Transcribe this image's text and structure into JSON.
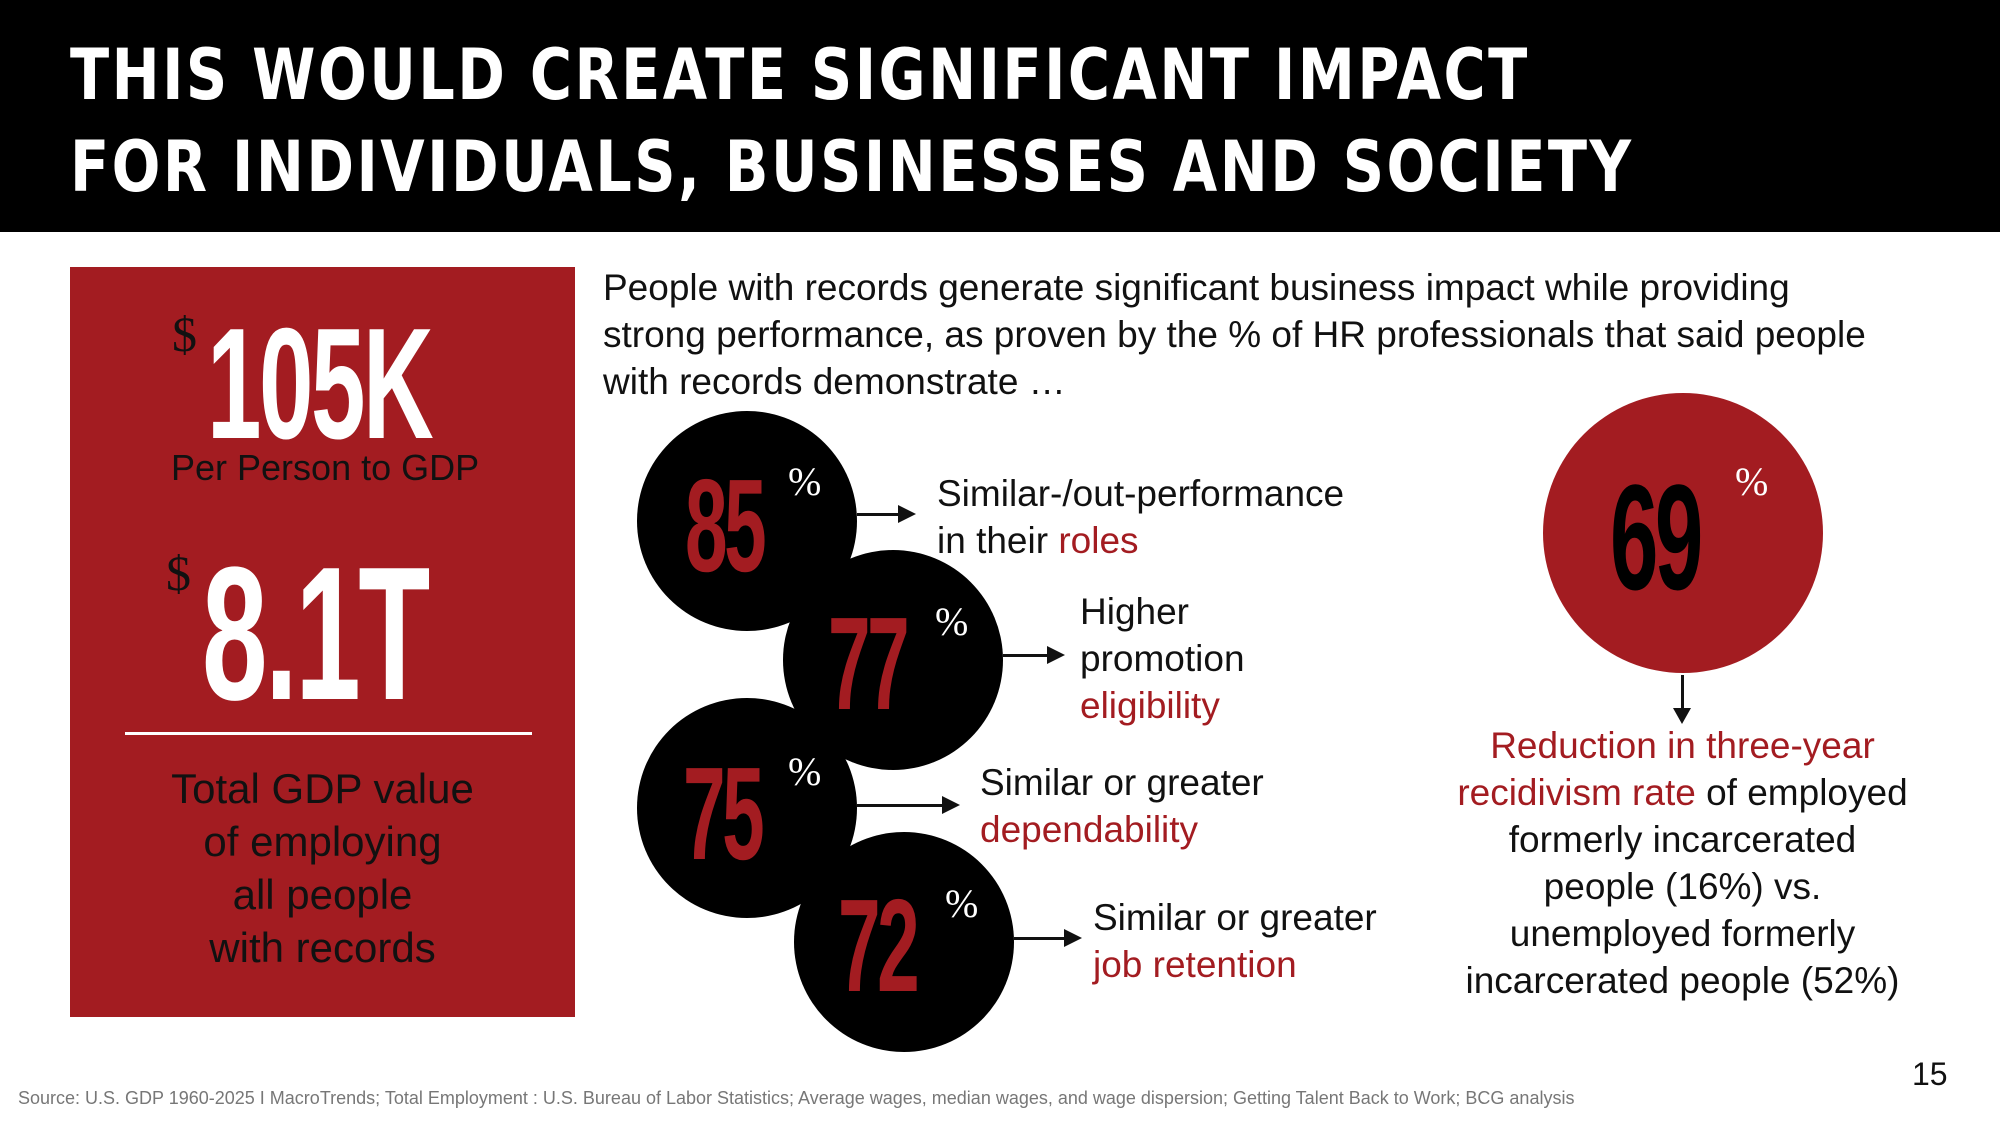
{
  "header": {
    "line1": "THIS WOULD CREATE SIGNIFICANT IMPACT",
    "line2": "FOR INDIVIDUALS, BUSINESSES AND SOCIETY"
  },
  "gdp_box": {
    "stat1_currency": "$",
    "stat1_value": "105K",
    "stat1_label": "Per Person to GDP",
    "stat2_currency": "$",
    "stat2_value": "8.1T",
    "stat2_label_lines": [
      "Total GDP value",
      "of employing",
      "all people",
      "with records"
    ]
  },
  "intro": {
    "lines": [
      "People with records generate significant business impact while providing",
      "strong performance, as proven by the % of HR professionals that said people",
      "with records demonstrate …"
    ]
  },
  "stats": [
    {
      "value": "85",
      "unit": "%",
      "label_lines": [
        "Similar-/out-performance"
      ],
      "label_prefix": "in their ",
      "label_highlight": "roles"
    },
    {
      "value": "77",
      "unit": "%",
      "label_lines": [
        "Higher",
        "promotion"
      ],
      "label_prefix": "",
      "label_highlight": "eligibility"
    },
    {
      "value": "75",
      "unit": "%",
      "label_lines": [
        "Similar or greater"
      ],
      "label_prefix": "",
      "label_highlight": "dependability"
    },
    {
      "value": "72",
      "unit": "%",
      "label_lines": [
        "Similar or greater"
      ],
      "label_prefix": "",
      "label_highlight": "job retention"
    }
  ],
  "recidivism": {
    "value": "69",
    "unit": "%",
    "highlight_line1": "Reduction in three-year",
    "highlight_line2": "recidivism rate",
    "rest_line2": " of employed",
    "lines": [
      "formerly incarcerated",
      "people (16%) vs.",
      "unemployed formerly",
      "incarcerated people (52%)"
    ]
  },
  "footer": {
    "source": "Source: U.S. GDP 1960-2025 I MacroTrends; Total Employment : U.S. Bureau of Labor Statistics; Average wages, median wages, and wage dispersion;  Getting Talent Back to Work;  BCG analysis",
    "page_number": "15"
  },
  "colors": {
    "accent_red": "#a31c21",
    "black": "#000000",
    "white": "#ffffff"
  }
}
